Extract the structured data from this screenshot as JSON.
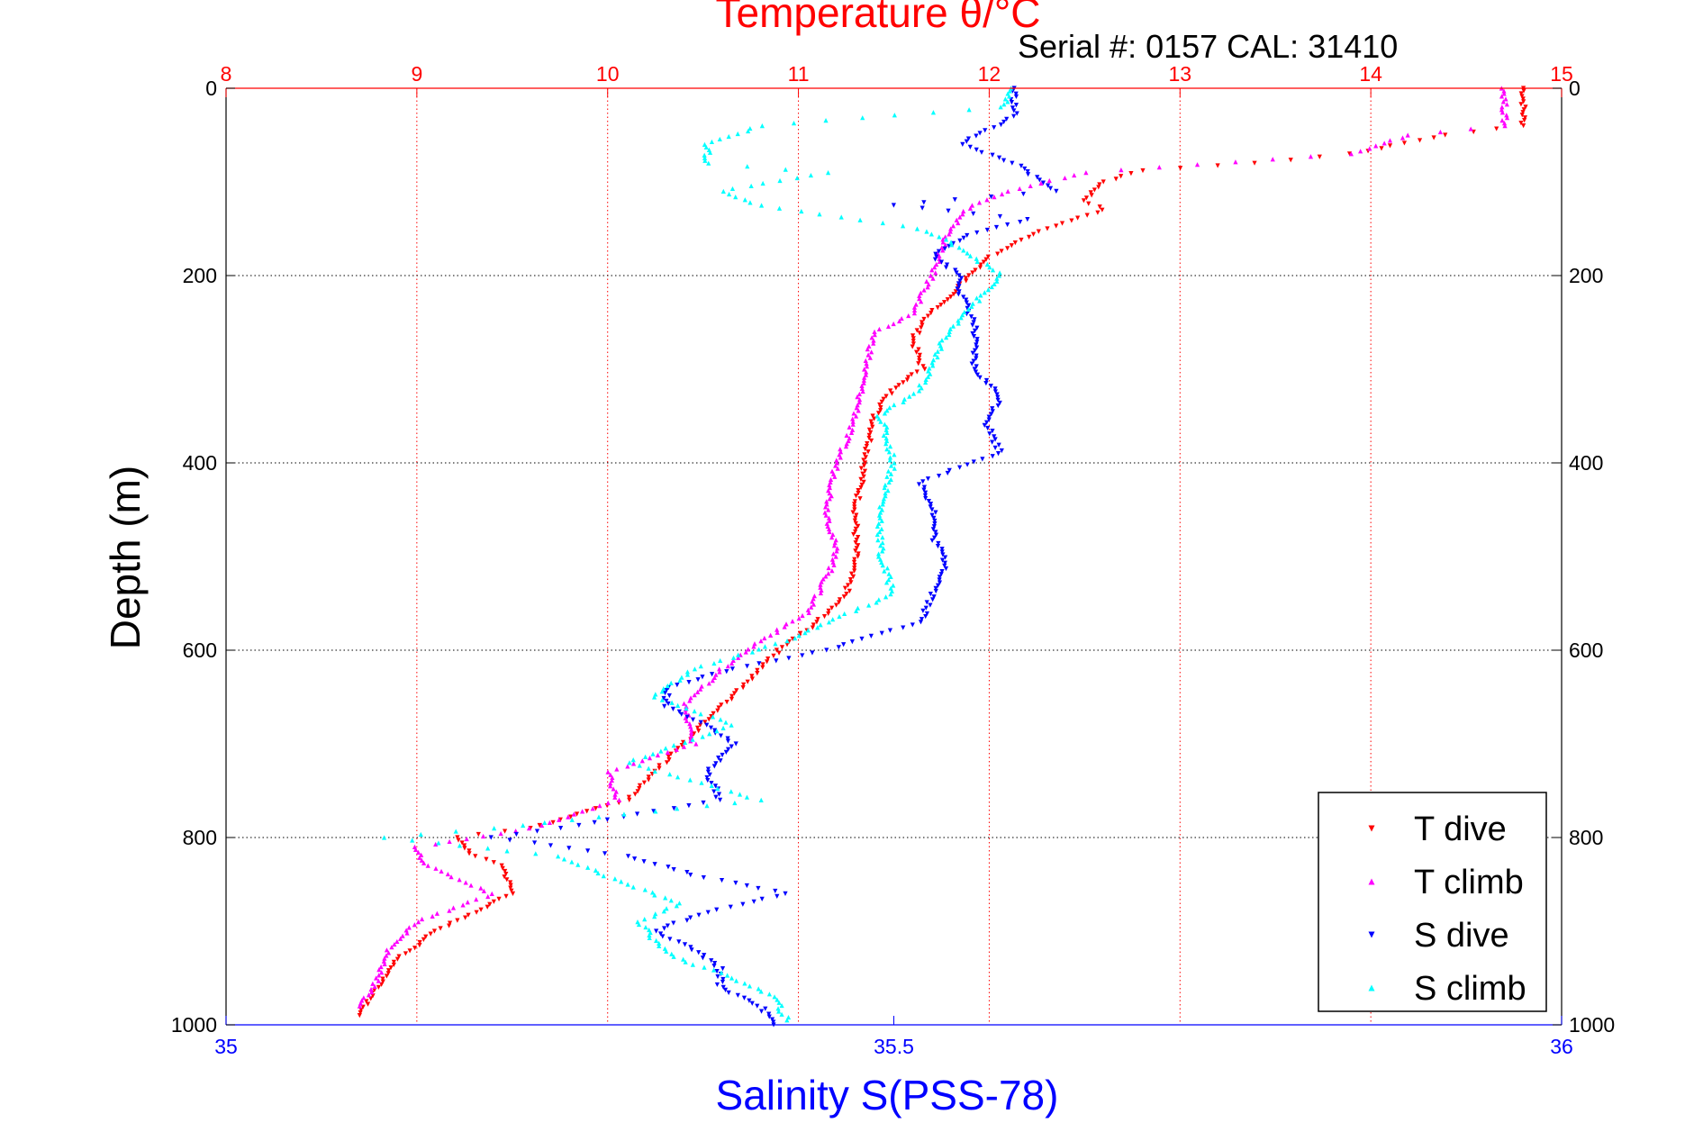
{
  "chart_data": {
    "type": "scatter",
    "title_top": "Temperature θ/°C",
    "subtitle": "Serial #: 0157  CAL: 31410",
    "xlabel_bottom": "Salinity S(PSS-78)",
    "ylabel": "Depth (m)",
    "x_top": {
      "label": "Temperature θ/°C",
      "lim": [
        8,
        15
      ],
      "ticks": [
        "8",
        "9",
        "10",
        "11",
        "12",
        "13",
        "14",
        "15"
      ],
      "color": "#ff0000"
    },
    "x_bottom": {
      "label": "Salinity S(PSS-78)",
      "lim": [
        35,
        36
      ],
      "ticks": [
        "35",
        "35.5",
        "36"
      ],
      "color": "#0000ff"
    },
    "y": {
      "label": "Depth (m)",
      "lim": [
        0,
        1000
      ],
      "reversed": true,
      "ticks": [
        "0",
        "200",
        "400",
        "600",
        "800",
        "1000"
      ]
    },
    "grid": true,
    "legend_position": "bottom-right",
    "legend": [
      "T dive",
      "T climb",
      "S dive",
      "S climb"
    ],
    "series": [
      {
        "name": "T dive",
        "axis": "temperature",
        "color": "#ff0000",
        "marker": "triangle-down",
        "points": [
          [
            14.8,
            0
          ],
          [
            14.8,
            20
          ],
          [
            14.8,
            40
          ],
          [
            14.4,
            50
          ],
          [
            13.9,
            70
          ],
          [
            13.4,
            80
          ],
          [
            12.8,
            88
          ],
          [
            12.6,
            100
          ],
          [
            12.5,
            120
          ],
          [
            12.6,
            130
          ],
          [
            12.3,
            150
          ],
          [
            12.0,
            180
          ],
          [
            11.9,
            200
          ],
          [
            11.8,
            220
          ],
          [
            11.7,
            240
          ],
          [
            11.65,
            250
          ],
          [
            11.6,
            270
          ],
          [
            11.65,
            300
          ],
          [
            11.5,
            320
          ],
          [
            11.4,
            350
          ],
          [
            11.35,
            400
          ],
          [
            11.3,
            450
          ],
          [
            11.3,
            500
          ],
          [
            11.25,
            540
          ],
          [
            11.1,
            570
          ],
          [
            10.9,
            600
          ],
          [
            10.7,
            640
          ],
          [
            10.5,
            680
          ],
          [
            10.3,
            720
          ],
          [
            10.1,
            760
          ],
          [
            9.6,
            790
          ],
          [
            9.2,
            800
          ],
          [
            9.3,
            820
          ],
          [
            9.45,
            830
          ],
          [
            9.5,
            860
          ],
          [
            9.3,
            880
          ],
          [
            9.1,
            900
          ],
          [
            8.9,
            930
          ],
          [
            8.8,
            960
          ],
          [
            8.7,
            990
          ]
        ]
      },
      {
        "name": "T climb",
        "axis": "temperature",
        "color": "#ff00ff",
        "marker": "triangle-up",
        "points": [
          [
            14.7,
            0
          ],
          [
            14.7,
            20
          ],
          [
            14.7,
            40
          ],
          [
            14.2,
            50
          ],
          [
            13.9,
            70
          ],
          [
            12.5,
            90
          ],
          [
            12.1,
            110
          ],
          [
            11.9,
            125
          ],
          [
            11.8,
            150
          ],
          [
            11.75,
            170
          ],
          [
            11.7,
            200
          ],
          [
            11.6,
            240
          ],
          [
            11.4,
            260
          ],
          [
            11.35,
            300
          ],
          [
            11.3,
            350
          ],
          [
            11.2,
            400
          ],
          [
            11.15,
            450
          ],
          [
            11.2,
            500
          ],
          [
            11.05,
            560
          ],
          [
            10.8,
            590
          ],
          [
            10.6,
            620
          ],
          [
            10.4,
            660
          ],
          [
            10.45,
            700
          ],
          [
            10.0,
            730
          ],
          [
            10.05,
            760
          ],
          [
            9.6,
            790
          ],
          [
            9.0,
            810
          ],
          [
            9.05,
            830
          ],
          [
            9.4,
            860
          ],
          [
            9.0,
            890
          ],
          [
            8.85,
            920
          ],
          [
            8.8,
            950
          ],
          [
            8.7,
            980
          ]
        ]
      },
      {
        "name": "S dive",
        "axis": "salinity",
        "color": "#0000ff",
        "marker": "triangle-down",
        "points": [
          [
            35.59,
            0
          ],
          [
            35.59,
            30
          ],
          [
            35.55,
            60
          ],
          [
            35.59,
            80
          ],
          [
            35.62,
            110
          ],
          [
            35.5,
            125
          ],
          [
            35.6,
            140
          ],
          [
            35.55,
            160
          ],
          [
            35.53,
            180
          ],
          [
            35.55,
            200
          ],
          [
            35.55,
            220
          ],
          [
            35.56,
            250
          ],
          [
            35.56,
            280
          ],
          [
            35.56,
            300
          ],
          [
            35.58,
            330
          ],
          [
            35.57,
            360
          ],
          [
            35.58,
            390
          ],
          [
            35.52,
            420
          ],
          [
            35.53,
            450
          ],
          [
            35.53,
            480
          ],
          [
            35.54,
            510
          ],
          [
            35.53,
            540
          ],
          [
            35.52,
            570
          ],
          [
            35.45,
            600
          ],
          [
            35.38,
            620
          ],
          [
            35.33,
            640
          ],
          [
            35.33,
            660
          ],
          [
            35.36,
            680
          ],
          [
            35.38,
            700
          ],
          [
            35.36,
            730
          ],
          [
            35.37,
            760
          ],
          [
            35.25,
            790
          ],
          [
            35.2,
            800
          ],
          [
            35.3,
            820
          ],
          [
            35.35,
            840
          ],
          [
            35.42,
            860
          ],
          [
            35.36,
            880
          ],
          [
            35.32,
            900
          ],
          [
            35.35,
            920
          ],
          [
            35.37,
            940
          ],
          [
            35.37,
            960
          ],
          [
            35.4,
            980
          ],
          [
            35.41,
            1000
          ]
        ]
      },
      {
        "name": "S climb",
        "axis": "salinity",
        "color": "#00ffff",
        "marker": "triangle-up",
        "points": [
          [
            35.59,
            0
          ],
          [
            35.58,
            20
          ],
          [
            35.4,
            40
          ],
          [
            35.36,
            60
          ],
          [
            35.36,
            80
          ],
          [
            35.45,
            90
          ],
          [
            35.37,
            110
          ],
          [
            35.4,
            125
          ],
          [
            35.52,
            150
          ],
          [
            35.55,
            170
          ],
          [
            35.58,
            200
          ],
          [
            35.56,
            230
          ],
          [
            35.54,
            260
          ],
          [
            35.53,
            290
          ],
          [
            35.52,
            320
          ],
          [
            35.49,
            350
          ],
          [
            35.5,
            400
          ],
          [
            35.49,
            450
          ],
          [
            35.49,
            500
          ],
          [
            35.5,
            540
          ],
          [
            35.45,
            570
          ],
          [
            35.42,
            590
          ],
          [
            35.35,
            620
          ],
          [
            35.32,
            650
          ],
          [
            35.38,
            680
          ],
          [
            35.3,
            720
          ],
          [
            35.4,
            760
          ],
          [
            35.2,
            790
          ],
          [
            35.12,
            800
          ],
          [
            35.25,
            820
          ],
          [
            35.3,
            850
          ],
          [
            35.34,
            870
          ],
          [
            35.31,
            890
          ],
          [
            35.32,
            910
          ],
          [
            35.34,
            930
          ],
          [
            35.38,
            950
          ],
          [
            35.41,
            970
          ],
          [
            35.42,
            995
          ]
        ]
      }
    ]
  }
}
